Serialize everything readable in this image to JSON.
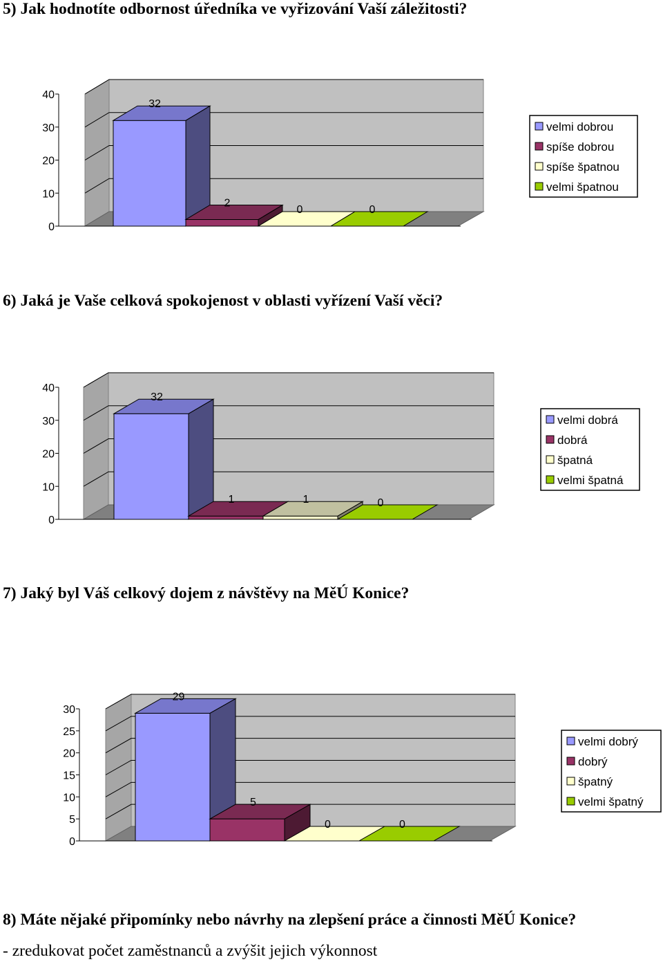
{
  "questions": {
    "q5": "5) Jak hodnotíte odbornost úředníka ve vyřizování Vaší záležitosti?",
    "q6": "6) Jaká je Vaše celková spokojenost v oblasti vyřízení Vaší věci?",
    "q7": "7) Jaký byl Váš celkový dojem z návštěvy na MěÚ Konice?",
    "q8": "8) Máte nějaké připomínky nebo návrhy na zlepšení práce a činnosti MěÚ Konice?"
  },
  "answers": {
    "q8": "- zredukovat počet zaměstnanců a zvýšit jejich výkonnost"
  },
  "chart_data": [
    {
      "type": "bar",
      "categories": [
        "velmi dobrou",
        "spíše dobrou",
        "spíše špatnou",
        "velmi špatnou"
      ],
      "values": [
        32,
        2,
        0,
        0
      ],
      "data_labels": [
        "32",
        "2",
        "0",
        "0"
      ],
      "yticks": [
        0,
        10,
        20,
        30,
        40
      ],
      "ylim": [
        0,
        40
      ],
      "grid": true,
      "legend": "right",
      "colors": [
        "#9999ff",
        "#993366",
        "#ffffcc",
        "#99cc00"
      ]
    },
    {
      "type": "bar",
      "categories": [
        "velmi dobrá",
        "dobrá",
        "špatná",
        "velmi špatná"
      ],
      "values": [
        32,
        1,
        1,
        0
      ],
      "data_labels": [
        "32",
        "1",
        "1",
        "0"
      ],
      "yticks": [
        0,
        10,
        20,
        30,
        40
      ],
      "ylim": [
        0,
        40
      ],
      "grid": true,
      "legend": "right",
      "colors": [
        "#9999ff",
        "#993366",
        "#ffffcc",
        "#99cc00"
      ]
    },
    {
      "type": "bar",
      "categories": [
        "velmi dobrý",
        "dobrý",
        "špatný",
        "velmi špatný"
      ],
      "values": [
        29,
        5,
        0,
        0
      ],
      "data_labels": [
        "29",
        "5",
        "0",
        "0"
      ],
      "yticks": [
        0,
        5,
        10,
        15,
        20,
        25,
        30
      ],
      "ylim": [
        0,
        30
      ],
      "grid": true,
      "legend": "right",
      "colors": [
        "#9999ff",
        "#993366",
        "#ffffcc",
        "#99cc00"
      ]
    }
  ]
}
